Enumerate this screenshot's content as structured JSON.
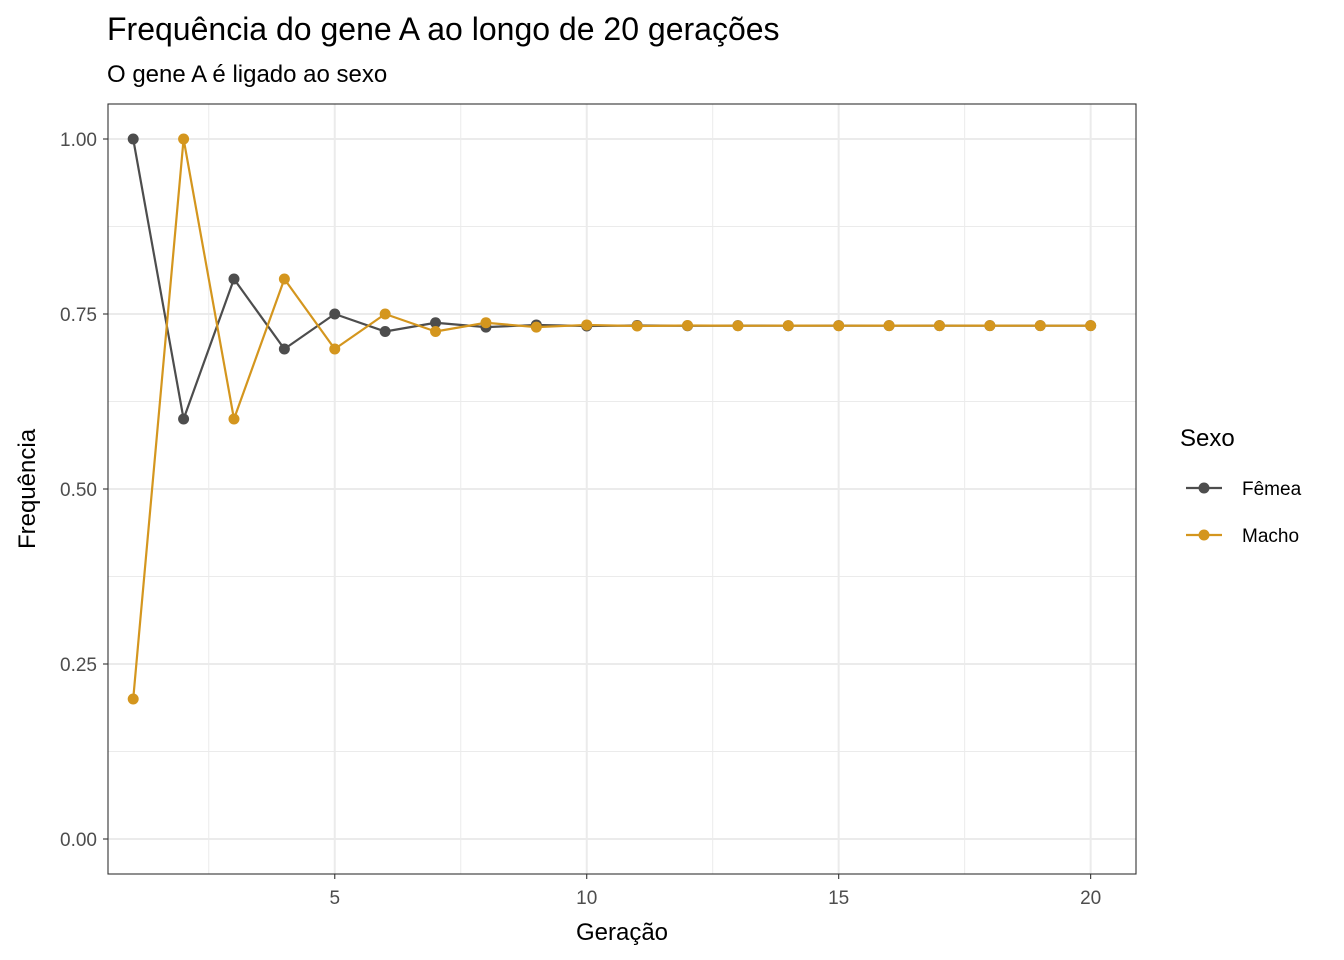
{
  "chart_data": {
    "type": "line",
    "title": "Frequência do gene A ao longo de 20 gerações",
    "subtitle": "O gene A é ligado ao sexo",
    "xlabel": "Geração",
    "ylabel": "Frequência",
    "xlim": [
      0.5,
      20.9
    ],
    "ylim": [
      -0.05,
      1.05
    ],
    "xticks": [
      5,
      10,
      15,
      20
    ],
    "xtick_labels": [
      "5",
      "10",
      "15",
      "20"
    ],
    "yticks": [
      0,
      0.25,
      0.5,
      0.75,
      1.0
    ],
    "ytick_labels": [
      "0.00",
      "0.25",
      "0.50",
      "0.75",
      "1.00"
    ],
    "grid": true,
    "legend": {
      "title": "Sexo",
      "position": "right"
    },
    "x": [
      1,
      2,
      3,
      4,
      5,
      6,
      7,
      8,
      9,
      10,
      11,
      12,
      13,
      14,
      15,
      16,
      17,
      18,
      19,
      20
    ],
    "series": [
      {
        "name": "Fêmea",
        "color": "#4d4d4d",
        "values": [
          1.0,
          0.6,
          0.8,
          0.7,
          0.75,
          0.725,
          0.7375,
          0.73125,
          0.734375,
          0.7328125,
          0.7335938,
          0.7332031,
          0.7333984,
          0.7333008,
          0.7333496,
          0.7333252,
          0.7333374,
          0.7333313,
          0.7333344,
          0.7333328
        ]
      },
      {
        "name": "Macho",
        "color": "#d4961e",
        "values": [
          0.2,
          1.0,
          0.6,
          0.8,
          0.7,
          0.75,
          0.725,
          0.7375,
          0.73125,
          0.734375,
          0.7328125,
          0.7335938,
          0.7332031,
          0.7333984,
          0.7333008,
          0.7333496,
          0.7333252,
          0.7333374,
          0.7333313,
          0.7333344
        ]
      }
    ]
  }
}
